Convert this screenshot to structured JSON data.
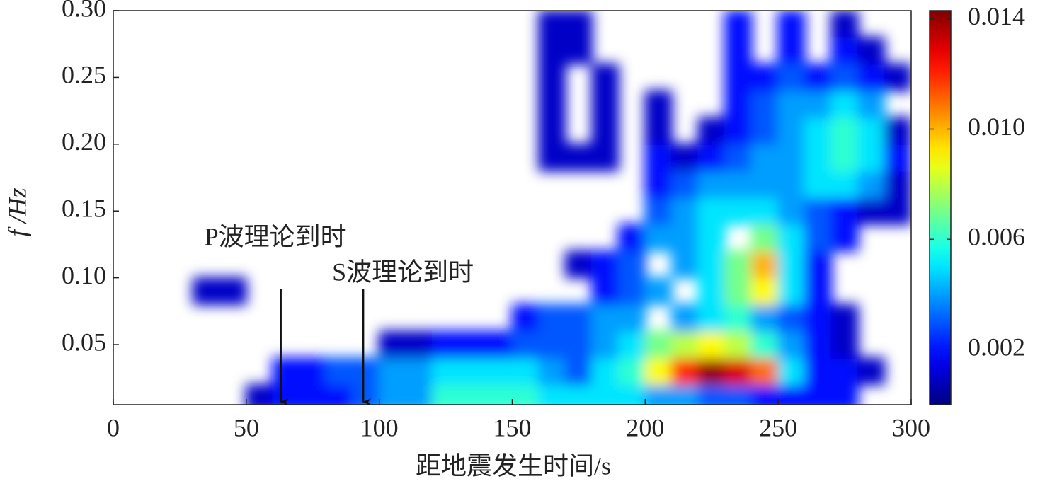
{
  "chart_data": {
    "type": "heatmap",
    "xlabel": "距地震发生时间/s",
    "ylabel": "f /Hz",
    "colormap": "jet",
    "zlim": [
      0,
      0.0143
    ],
    "zticks": [
      0.002,
      0.006,
      {
        "value": 0.01,
        "label": "0.010"
      },
      0.014
    ],
    "xlim": [
      0,
      300
    ],
    "xticks": [
      0,
      50,
      100,
      150,
      200,
      250,
      300
    ],
    "ylim": [
      0.005,
      0.3
    ],
    "yticks": [
      0.05,
      {
        "value": 0.1,
        "label": "0.10"
      },
      0.15,
      {
        "value": 0.2,
        "label": "0.20"
      },
      0.25,
      {
        "value": 0.3,
        "label": "0.30"
      }
    ],
    "x": [
      5,
      15,
      25,
      35,
      45,
      55,
      65,
      75,
      85,
      95,
      105,
      115,
      125,
      135,
      145,
      155,
      165,
      175,
      185,
      195,
      205,
      215,
      225,
      235,
      245,
      255,
      265,
      275,
      285,
      295
    ],
    "y": [
      0.01,
      0.03,
      0.05,
      0.07,
      0.09,
      0.11,
      0.13,
      0.15,
      0.17,
      0.19,
      0.21,
      0.23,
      0.25,
      0.27,
      0.29
    ],
    "z": [
      [
        null,
        null,
        null,
        null,
        null,
        0.001,
        0.002,
        0.002,
        0.002,
        0.003,
        0.004,
        0.004,
        0.006,
        0.006,
        0.006,
        0.006,
        0.005,
        0.005,
        0.005,
        0.005,
        0.004,
        0.004,
        0.003,
        0.003,
        0.002,
        0.002,
        0.002,
        0.002,
        null,
        null
      ],
      [
        null,
        null,
        null,
        null,
        null,
        null,
        0.002,
        0.002,
        0.003,
        0.003,
        0.004,
        0.004,
        0.005,
        0.005,
        0.005,
        0.005,
        0.004,
        0.003,
        0.005,
        0.006,
        0.009,
        0.012,
        0.014,
        0.013,
        0.011,
        0.005,
        0.002,
        0.002,
        0.001,
        null
      ],
      [
        null,
        null,
        null,
        null,
        null,
        null,
        null,
        null,
        null,
        null,
        0.001,
        0.001,
        0.002,
        0.002,
        0.002,
        0.003,
        0.003,
        0.003,
        0.004,
        0.005,
        0.007,
        0.008,
        0.009,
        0.008,
        0.006,
        0.004,
        0.002,
        0.001,
        null,
        null
      ],
      [
        null,
        null,
        null,
        null,
        null,
        null,
        null,
        null,
        null,
        null,
        null,
        null,
        null,
        null,
        null,
        0.002,
        0.003,
        0.003,
        0.004,
        0.004,
        null,
        0.004,
        0.005,
        0.006,
        0.004,
        0.003,
        0.002,
        0.001,
        null,
        null
      ],
      [
        null,
        null,
        null,
        0.001,
        0.001,
        null,
        null,
        null,
        null,
        null,
        null,
        null,
        null,
        null,
        null,
        null,
        null,
        null,
        0.002,
        0.003,
        0.004,
        null,
        0.005,
        0.007,
        0.009,
        0.005,
        0.002,
        null,
        null,
        null
      ],
      [
        null,
        null,
        null,
        null,
        null,
        null,
        null,
        null,
        null,
        null,
        null,
        null,
        null,
        null,
        null,
        null,
        null,
        0.001,
        0.002,
        0.003,
        null,
        0.004,
        0.005,
        0.007,
        0.01,
        0.005,
        0.002,
        null,
        null,
        null
      ],
      [
        null,
        null,
        null,
        null,
        null,
        null,
        null,
        null,
        null,
        null,
        null,
        null,
        null,
        null,
        null,
        null,
        null,
        null,
        null,
        0.002,
        0.004,
        0.004,
        0.005,
        null,
        0.007,
        0.005,
        0.003,
        0.002,
        null,
        null
      ],
      [
        null,
        null,
        null,
        null,
        null,
        null,
        null,
        null,
        null,
        null,
        null,
        null,
        null,
        null,
        null,
        null,
        null,
        null,
        null,
        null,
        0.003,
        0.004,
        0.005,
        0.005,
        0.005,
        0.004,
        0.003,
        0.002,
        0.001,
        0.001
      ],
      [
        null,
        null,
        null,
        null,
        null,
        null,
        null,
        null,
        null,
        null,
        null,
        null,
        null,
        null,
        null,
        null,
        null,
        null,
        null,
        null,
        0.002,
        0.003,
        0.004,
        0.004,
        0.004,
        0.004,
        0.005,
        0.005,
        0.004,
        0.001
      ],
      [
        null,
        null,
        null,
        null,
        null,
        null,
        null,
        null,
        null,
        null,
        null,
        null,
        null,
        null,
        null,
        null,
        0.001,
        0.001,
        0.001,
        null,
        0.002,
        0.001,
        0.002,
        0.003,
        0.004,
        0.004,
        0.005,
        0.006,
        0.005,
        0.002
      ],
      [
        null,
        null,
        null,
        null,
        null,
        null,
        null,
        null,
        null,
        null,
        null,
        null,
        null,
        null,
        null,
        null,
        0.001,
        null,
        0.001,
        null,
        0.001,
        null,
        0.001,
        0.002,
        0.003,
        0.004,
        0.005,
        0.006,
        0.005,
        0.001
      ],
      [
        null,
        null,
        null,
        null,
        null,
        null,
        null,
        null,
        null,
        null,
        null,
        null,
        null,
        null,
        null,
        null,
        0.001,
        null,
        0.001,
        null,
        0.001,
        null,
        null,
        0.002,
        0.003,
        0.004,
        0.004,
        0.005,
        0.004,
        null
      ],
      [
        null,
        null,
        null,
        null,
        null,
        null,
        null,
        null,
        null,
        null,
        null,
        null,
        null,
        null,
        null,
        null,
        0.001,
        null,
        0.001,
        null,
        null,
        null,
        null,
        0.002,
        0.002,
        0.003,
        0.002,
        0.003,
        0.002,
        0.001
      ],
      [
        null,
        null,
        null,
        null,
        null,
        null,
        null,
        null,
        null,
        null,
        null,
        null,
        null,
        null,
        null,
        null,
        0.001,
        0.001,
        null,
        null,
        null,
        null,
        null,
        0.002,
        null,
        0.002,
        null,
        0.002,
        0.001,
        null
      ],
      [
        null,
        null,
        null,
        null,
        null,
        null,
        null,
        null,
        null,
        null,
        null,
        null,
        null,
        null,
        null,
        null,
        0.001,
        0.001,
        null,
        null,
        null,
        null,
        null,
        0.002,
        null,
        0.002,
        null,
        0.001,
        null,
        null
      ]
    ],
    "annotations": [
      {
        "text": "P波理论到时",
        "x": 63,
        "y": 0.007
      },
      {
        "text": "S波理论到时",
        "x": 94,
        "y": 0.007
      }
    ]
  }
}
